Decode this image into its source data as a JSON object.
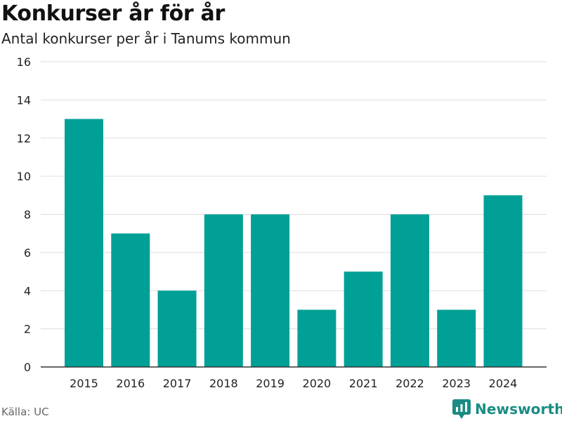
{
  "title": "Konkurser år för år",
  "subtitle": "Antal konkurser per år i Tanums kommun",
  "source": "Källa: UC",
  "brand": {
    "name": "Newsworthy",
    "icon": "newsworthy-logo-icon"
  },
  "colors": {
    "bar": "#00A096",
    "grid": "#dddddd",
    "axis": "#333333",
    "brand": "#1a8c84"
  },
  "chart_data": {
    "type": "bar",
    "title": "Konkurser år för år",
    "subtitle": "Antal konkurser per år i Tanums kommun",
    "xlabel": "",
    "ylabel": "",
    "categories": [
      "2015",
      "2016",
      "2017",
      "2018",
      "2019",
      "2020",
      "2021",
      "2022",
      "2023",
      "2024"
    ],
    "values": [
      13,
      7,
      4,
      8,
      8,
      3,
      5,
      8,
      3,
      9
    ],
    "ylim": [
      0,
      16
    ],
    "yticks": [
      0,
      2,
      4,
      6,
      8,
      10,
      12,
      14,
      16
    ],
    "grid": true,
    "legend": "none"
  }
}
